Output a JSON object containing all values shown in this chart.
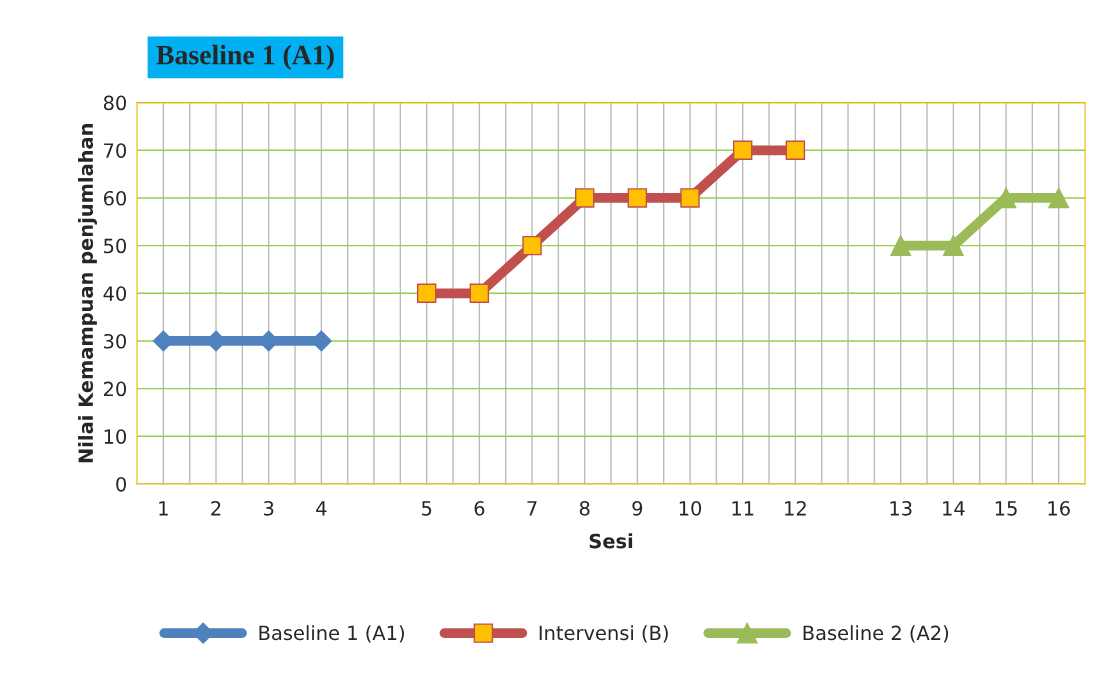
{
  "chart_data": {
    "type": "line",
    "title": "Baseline 1 (A1)",
    "xlabel": "Sesi",
    "ylabel": "Nilai Kemampuan penjumlahan",
    "categories": [
      "1",
      "2",
      "3",
      "4",
      null,
      "5",
      "6",
      "7",
      "8",
      "9",
      "10",
      "11",
      "12",
      null,
      "13",
      "14",
      "15",
      "16"
    ],
    "series": [
      {
        "name": "Baseline 1 (A1)",
        "color": "#4f81bd",
        "marker": "diamond",
        "values": [
          30,
          30,
          30,
          30,
          null,
          null,
          null,
          null,
          null,
          null,
          null,
          null,
          null,
          null,
          null,
          null,
          null,
          null
        ]
      },
      {
        "name": "Intervensi (B)",
        "color": "#c0504d",
        "marker": "square",
        "values": [
          null,
          null,
          null,
          null,
          null,
          40,
          40,
          50,
          60,
          60,
          60,
          70,
          70,
          null,
          null,
          null,
          null,
          null
        ]
      },
      {
        "name": "Baseline 2 (A2)",
        "color": "#9bbb59",
        "marker": "triangle",
        "values": [
          null,
          null,
          null,
          null,
          null,
          null,
          null,
          null,
          null,
          null,
          null,
          null,
          null,
          null,
          50,
          50,
          60,
          60
        ]
      }
    ],
    "ylim": [
      0,
      80
    ],
    "yticks": [
      0,
      10,
      20,
      30,
      40,
      50,
      60,
      70,
      80
    ],
    "grid": true,
    "legend": "bottom",
    "line_style": "solid"
  }
}
